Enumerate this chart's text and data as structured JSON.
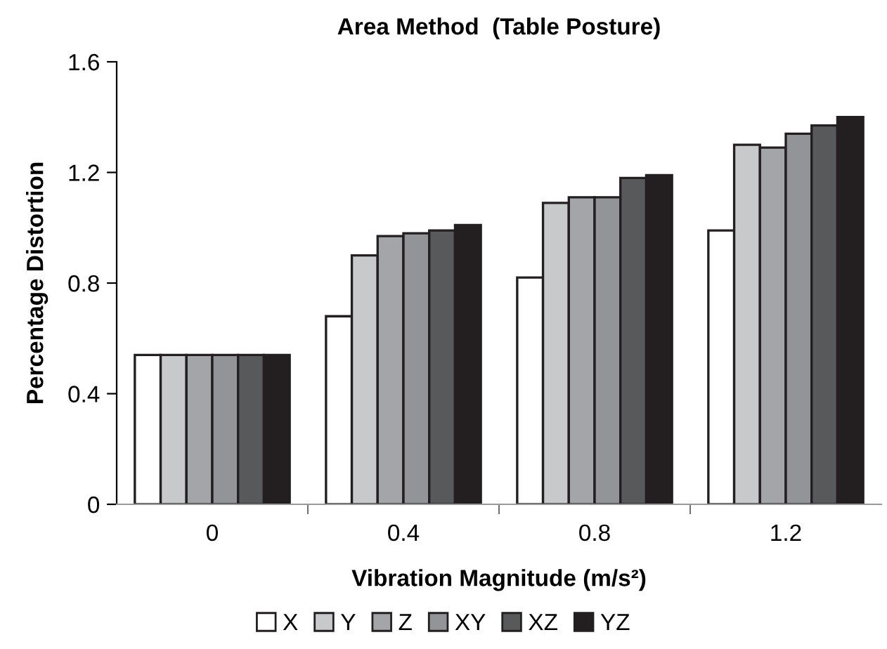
{
  "chart_data": {
    "type": "bar",
    "title": "Area Method  (Table Posture)",
    "xlabel": "Vibration Magnitude (m/s²)",
    "ylabel": "Percentage Distortion",
    "categories": [
      "0",
      "0.4",
      "0.8",
      "1.2"
    ],
    "series": [
      {
        "name": "X",
        "color": "#ffffff",
        "values": [
          0.54,
          0.68,
          0.82,
          0.99
        ]
      },
      {
        "name": "Y",
        "color": "#c8c9cb",
        "values": [
          0.54,
          0.9,
          1.09,
          1.3
        ]
      },
      {
        "name": "Z",
        "color": "#a4a5a8",
        "values": [
          0.54,
          0.97,
          1.11,
          1.29
        ]
      },
      {
        "name": "XY",
        "color": "#939498",
        "values": [
          0.54,
          0.98,
          1.11,
          1.34
        ]
      },
      {
        "name": "XZ",
        "color": "#58595b",
        "values": [
          0.54,
          0.99,
          1.18,
          1.37
        ]
      },
      {
        "name": "YZ",
        "color": "#231f20",
        "values": [
          0.54,
          1.01,
          1.19,
          1.4
        ]
      }
    ],
    "ylim": [
      0,
      1.6
    ],
    "yticks": [
      0,
      0.4,
      0.8,
      1.2,
      1.6
    ],
    "grid": false,
    "legend": "bottom"
  }
}
